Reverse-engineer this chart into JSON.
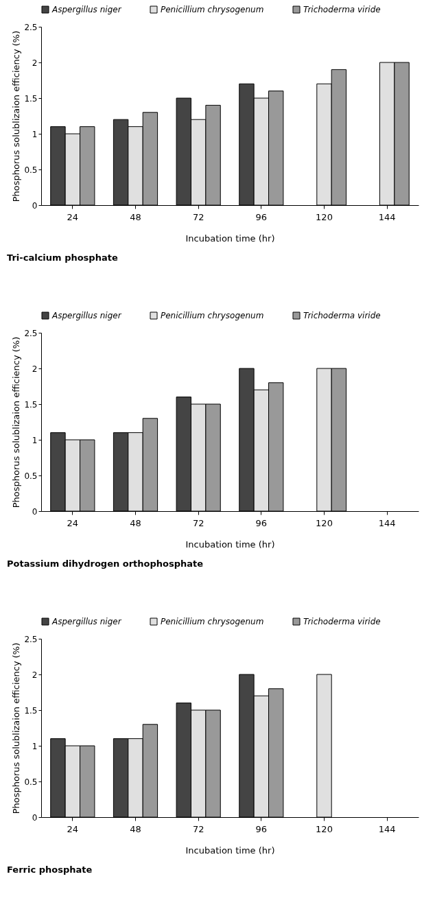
{
  "chart_data": [
    {
      "type": "bar",
      "title": "Tri-calcium phosphate",
      "xlabel": "Incubation time (hr)",
      "ylabel": "Phosphorus solublizaion efficiency (%)",
      "categories": [
        "24",
        "48",
        "72",
        "96",
        "120",
        "144"
      ],
      "ylim": [
        0,
        2.5
      ],
      "yticks": [
        0,
        0.5,
        1,
        1.5,
        2,
        2.5
      ],
      "grid": false,
      "legend": "top",
      "series": [
        {
          "name": "Aspergillus niger",
          "color": "#444444",
          "values": [
            1.1,
            1.2,
            1.5,
            1.7,
            null,
            null
          ]
        },
        {
          "name": "Penicillium chrysogenum",
          "color": "#e0e0e0",
          "values": [
            1.0,
            1.1,
            1.2,
            1.5,
            1.7,
            2.0
          ]
        },
        {
          "name": "Trichoderma viride",
          "color": "#999999",
          "values": [
            1.1,
            1.3,
            1.4,
            1.6,
            1.9,
            2.0
          ]
        }
      ]
    },
    {
      "type": "bar",
      "title": "Potassium dihydrogen orthophosphate",
      "xlabel": "Incubation time (hr)",
      "ylabel": "Phosphorus solublizaion efficiency (%)",
      "categories": [
        "24",
        "48",
        "72",
        "96",
        "120",
        "144"
      ],
      "ylim": [
        0,
        2.5
      ],
      "yticks": [
        0,
        0.5,
        1,
        1.5,
        2,
        2.5
      ],
      "grid": false,
      "legend": "top",
      "series": [
        {
          "name": "Aspergillus niger",
          "color": "#444444",
          "values": [
            1.1,
            1.1,
            1.6,
            2.0,
            null,
            null
          ]
        },
        {
          "name": "Penicillium chrysogenum",
          "color": "#e0e0e0",
          "values": [
            1.0,
            1.1,
            1.5,
            1.7,
            2.0,
            null
          ]
        },
        {
          "name": "Trichoderma viride",
          "color": "#999999",
          "values": [
            1.0,
            1.3,
            1.5,
            1.8,
            2.0,
            null
          ]
        }
      ]
    },
    {
      "type": "bar",
      "title": "Ferric phosphate",
      "xlabel": "Incubation time (hr)",
      "ylabel": "Phosphorus solublizaion efficiency (%)",
      "categories": [
        "24",
        "48",
        "72",
        "96",
        "120",
        "144"
      ],
      "ylim": [
        0,
        2.5
      ],
      "yticks": [
        0,
        0.5,
        1,
        1.5,
        2,
        2.5
      ],
      "grid": false,
      "legend": "top",
      "series": [
        {
          "name": "Aspergillus niger",
          "color": "#444444",
          "values": [
            1.1,
            1.1,
            1.6,
            2.0,
            null,
            null
          ]
        },
        {
          "name": "Penicillium chrysogenum",
          "color": "#e0e0e0",
          "values": [
            1.0,
            1.1,
            1.5,
            1.7,
            2.0,
            null
          ]
        },
        {
          "name": "Trichoderma viride",
          "color": "#999999",
          "values": [
            1.0,
            1.3,
            1.5,
            1.8,
            null,
            null
          ]
        }
      ]
    }
  ]
}
